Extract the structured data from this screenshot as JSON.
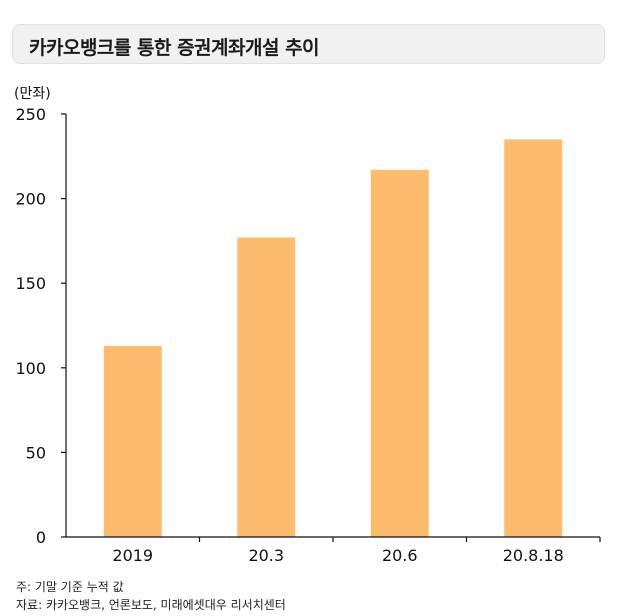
{
  "title": "카카오뱅크를 통한 증권계좌개설 추이",
  "notes": {
    "note": "주: 기말 기준 누적 값",
    "source": "자료: 카카오뱅크, 언론보도, 미래에셋대우 리서치센터"
  },
  "chart_data": {
    "type": "bar",
    "title": "카카오뱅크를 통한 증권계좌개설 추이",
    "ylabel": "(만좌)",
    "xlabel": "",
    "categories": [
      "2019",
      "20.3",
      "20.6",
      "20.8.18"
    ],
    "values": [
      113,
      177,
      217,
      235
    ],
    "ylim": [
      0,
      250
    ],
    "yticks": [
      0,
      50,
      100,
      150,
      200,
      250
    ],
    "grid": false,
    "bar_color": "#FDBB6E",
    "axis_color": "#111111"
  }
}
